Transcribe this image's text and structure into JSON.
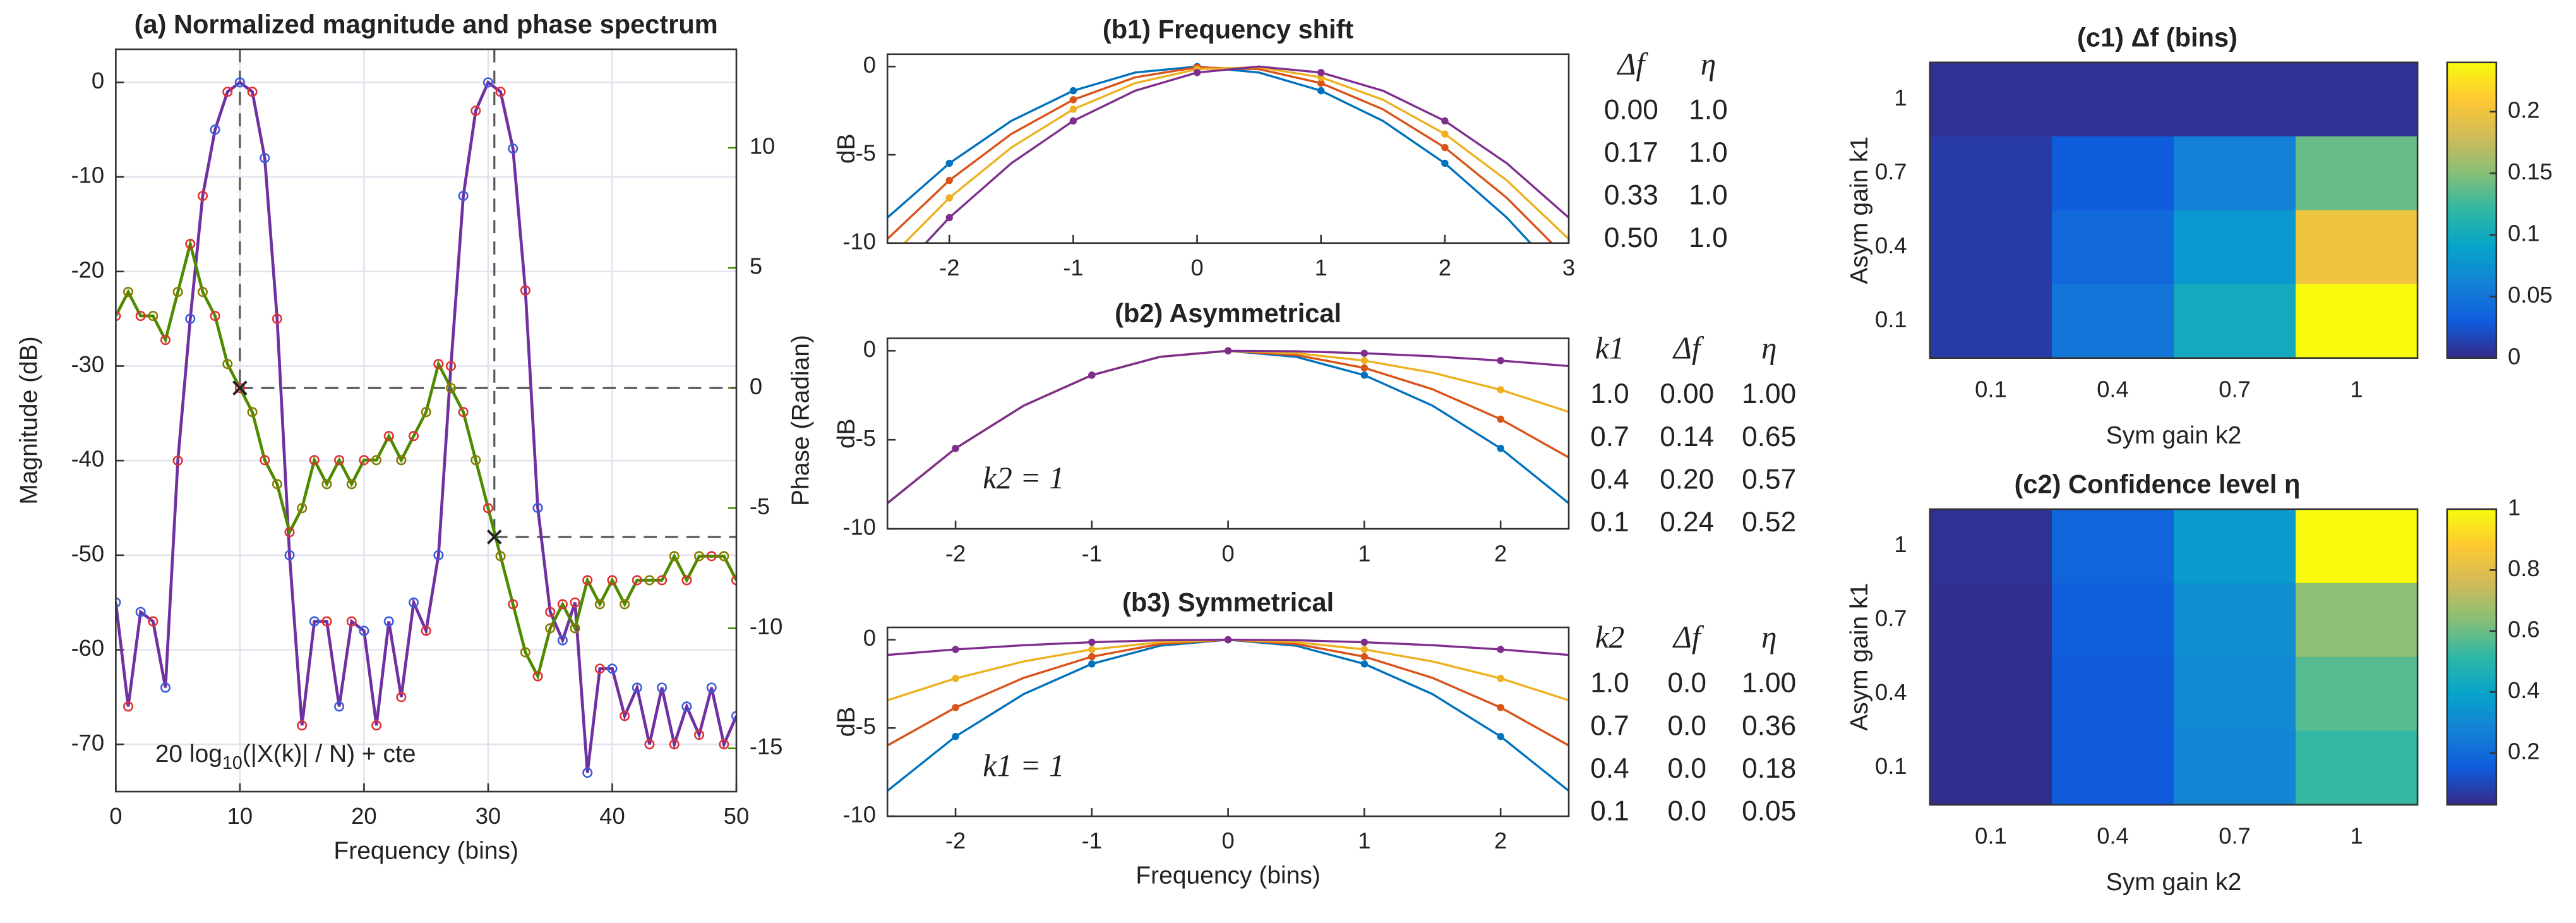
{
  "chart_data": [
    {
      "type": "line",
      "title": "(a) Normalized magnitude and phase spectrum",
      "xlabel": "Frequency (bins)",
      "ylabel": "Magnitude (dB)",
      "y2label": "Phase (Radian)",
      "annotation_parts": [
        "20 log",
        "10",
        "(|X(k)| / N) + cte"
      ],
      "x": [
        0,
        1,
        2,
        3,
        4,
        5,
        6,
        7,
        8,
        9,
        10,
        11,
        12,
        13,
        14,
        15,
        16,
        17,
        18,
        19,
        20,
        21,
        22,
        23,
        24,
        25,
        26,
        27,
        28,
        29,
        30,
        31,
        32,
        33,
        34,
        35,
        36,
        37,
        38,
        39,
        40,
        41,
        42,
        43,
        44,
        45,
        46,
        47,
        48,
        49,
        50
      ],
      "xlim": [
        0,
        50
      ],
      "xticks": [
        0,
        10,
        20,
        30,
        40,
        50
      ],
      "ylim": [
        -75,
        3.5
      ],
      "yticks": [
        -70,
        -60,
        -50,
        -40,
        -30,
        -20,
        -10,
        0
      ],
      "y2lim": [
        -16.8,
        14.1
      ],
      "y2ticks": [
        -15,
        -10,
        -5,
        0,
        5,
        10
      ],
      "grid": true,
      "series": [
        {
          "color": "#7030a0",
          "marker_colors": [
            "#3b5bdb",
            "#e03131"
          ],
          "values": [
            -55,
            -66,
            -56,
            -57,
            -64,
            -40,
            -25,
            -12,
            -5,
            -1,
            0,
            -1,
            -8,
            -25,
            -50,
            -68,
            -57,
            -57,
            -66,
            -57,
            -58,
            -68,
            -57,
            -65,
            -55,
            -58,
            -50,
            -30,
            -12,
            -3,
            0,
            -1,
            -7,
            -22,
            -45,
            -56,
            -59,
            -55,
            -73,
            -62,
            -62,
            -67,
            -64,
            -70,
            -64,
            -70,
            -66,
            -69,
            -64,
            -70,
            -67
          ]
        },
        {
          "color": "#4d8a00",
          "marker_colors": [
            "#e03131",
            "#8a7a00"
          ],
          "axis": "y2",
          "values": [
            3,
            4,
            3,
            3,
            2,
            4,
            6,
            4,
            3,
            1,
            0,
            -1,
            -3,
            -4,
            -6,
            -5,
            -3,
            -4,
            -3,
            -4,
            -3,
            -3,
            -2,
            -3,
            -2,
            -1,
            1,
            0,
            -1,
            -3,
            -5,
            -7,
            -9,
            -11,
            -12,
            -10,
            -9,
            -10,
            -8,
            -9,
            -8,
            -9,
            -8,
            -8,
            -8,
            -7,
            -8,
            -7,
            -7,
            -7,
            -8
          ]
        }
      ],
      "reference": {
        "x": [
          10,
          30.5
        ],
        "y2": [
          0,
          -6.2
        ]
      }
    },
    {
      "type": "line",
      "title": "(b1) Frequency shift",
      "ylabel": "dB",
      "x": [
        -2.5,
        -2,
        -1.5,
        -1,
        -0.5,
        0,
        0.5,
        1,
        1.5,
        2,
        2.5,
        3
      ],
      "xlim": [
        -2.5,
        3
      ],
      "xticks": [
        -2,
        -1,
        0,
        1,
        2,
        3
      ],
      "ylim": [
        -10,
        0.7
      ],
      "yticks": [
        -10,
        -5,
        0
      ],
      "marker_x": [
        -2,
        -1,
        0,
        1,
        2
      ],
      "series": [
        {
          "color": "#0072bd",
          "values": [
            -8.56,
            -5.48,
            -3.08,
            -1.37,
            -0.34,
            0,
            -0.34,
            -1.37,
            -3.08,
            -5.48,
            -8.56,
            -12.33
          ],
          "marker_values": [
            -5.48,
            -1.37,
            0,
            -1.37,
            -5.48
          ]
        },
        {
          "color": "#d95319",
          "values": [
            -9.77,
            -6.45,
            -3.82,
            -1.88,
            -0.61,
            -0.04,
            -0.15,
            -0.94,
            -2.42,
            -4.59,
            -7.44,
            -10.97
          ],
          "marker_values": [
            -6.45,
            -1.88,
            -0.04,
            -0.94,
            -4.59
          ]
        },
        {
          "color": "#edb120",
          "values": [
            -10.97,
            -7.44,
            -4.59,
            -2.42,
            -0.94,
            -0.15,
            -0.04,
            -0.61,
            -1.88,
            -3.82,
            -6.45,
            -9.77
          ],
          "marker_values": [
            -7.44,
            -2.42,
            -0.15,
            -0.61,
            -3.82
          ]
        },
        {
          "color": "#7e2f8e",
          "values": [
            -12.33,
            -8.56,
            -5.48,
            -3.08,
            -1.37,
            -0.34,
            0,
            -0.34,
            -1.37,
            -3.08,
            -5.48,
            -8.56
          ],
          "marker_values": [
            -8.56,
            -3.08,
            -0.34,
            -0.34,
            -3.08
          ]
        }
      ],
      "table": {
        "header": [
          "Δf",
          "η"
        ],
        "rows": [
          [
            "0.00",
            "1.0"
          ],
          [
            "0.17",
            "1.0"
          ],
          [
            "0.33",
            "1.0"
          ],
          [
            "0.50",
            "1.0"
          ]
        ],
        "colors": [
          "#0072bd",
          "#c00000",
          "#f0b000",
          "#7e2f8e"
        ]
      }
    },
    {
      "type": "line",
      "title": "(b2) Asymmetrical",
      "ylabel": "dB",
      "annotation": "k2 = 1",
      "x": [
        -2.5,
        -2,
        -1.5,
        -1,
        -0.5,
        0,
        0.5,
        1,
        1.5,
        2,
        2.5
      ],
      "xlim": [
        -2.5,
        2.5
      ],
      "xticks": [
        -2,
        -1,
        0,
        1,
        2
      ],
      "ylim": [
        -10,
        0.7
      ],
      "yticks": [
        -10,
        -5,
        0
      ],
      "marker_x": [
        -2,
        -1,
        0,
        1,
        2
      ],
      "series": [
        {
          "color": "#0072bd",
          "values": [
            -8.56,
            -5.48,
            -3.08,
            -1.37,
            -0.34,
            0,
            -0.34,
            -1.37,
            -3.08,
            -5.48,
            -8.56
          ],
          "marker_values": [
            -5.48,
            -1.37,
            0,
            -1.37,
            -5.48
          ]
        },
        {
          "color": "#d95319",
          "values": [
            -8.56,
            -5.48,
            -3.08,
            -1.37,
            -0.34,
            0,
            -0.24,
            -0.96,
            -2.16,
            -3.84,
            -5.99
          ],
          "marker_values": [
            -5.48,
            -1.37,
            0,
            -0.96,
            -3.84
          ]
        },
        {
          "color": "#edb120",
          "values": [
            -8.56,
            -5.48,
            -3.08,
            -1.37,
            -0.34,
            0,
            -0.14,
            -0.55,
            -1.23,
            -2.19,
            -3.43
          ],
          "marker_values": [
            -5.48,
            -1.37,
            0,
            -0.55,
            -2.19
          ]
        },
        {
          "color": "#7e2f8e",
          "values": [
            -8.56,
            -5.48,
            -3.08,
            -1.37,
            -0.34,
            0,
            -0.03,
            -0.14,
            -0.31,
            -0.55,
            -0.86
          ],
          "marker_values": [
            -5.48,
            -1.37,
            0,
            -0.14,
            -0.55
          ]
        }
      ],
      "table": {
        "header": [
          "k1",
          "Δf",
          "η"
        ],
        "rows": [
          [
            "1.0",
            "0.00",
            "1.00"
          ],
          [
            "0.7",
            "0.14",
            "0.65"
          ],
          [
            "0.4",
            "0.20",
            "0.57"
          ],
          [
            "0.1",
            "0.24",
            "0.52"
          ]
        ],
        "colors": [
          "#0072bd",
          "#c00000",
          "#f0b000",
          "#7e2f8e"
        ]
      }
    },
    {
      "type": "line",
      "title": "(b3) Symmetrical",
      "ylabel": "dB",
      "xlabel": "Frequency (bins)",
      "annotation": "k1 = 1",
      "x": [
        -2.5,
        -2,
        -1.5,
        -1,
        -0.5,
        0,
        0.5,
        1,
        1.5,
        2,
        2.5
      ],
      "xlim": [
        -2.5,
        2.5
      ],
      "xticks": [
        -2,
        -1,
        0,
        1,
        2
      ],
      "ylim": [
        -10,
        0.7
      ],
      "yticks": [
        -10,
        -5,
        0
      ],
      "marker_x": [
        -2,
        -1,
        0,
        1,
        2
      ],
      "series": [
        {
          "color": "#0072bd",
          "values": [
            -8.56,
            -5.48,
            -3.08,
            -1.37,
            -0.34,
            0,
            -0.34,
            -1.37,
            -3.08,
            -5.48,
            -8.56
          ],
          "marker_values": [
            -5.48,
            -1.37,
            0,
            -1.37,
            -5.48
          ]
        },
        {
          "color": "#d95319",
          "values": [
            -5.99,
            -3.84,
            -2.16,
            -0.96,
            -0.24,
            0,
            -0.24,
            -0.96,
            -2.16,
            -3.84,
            -5.99
          ],
          "marker_values": [
            -3.84,
            -0.96,
            0,
            -0.96,
            -3.84
          ]
        },
        {
          "color": "#edb120",
          "values": [
            -3.43,
            -2.19,
            -1.23,
            -0.55,
            -0.14,
            0,
            -0.14,
            -0.55,
            -1.23,
            -2.19,
            -3.43
          ],
          "marker_values": [
            -2.19,
            -0.55,
            0,
            -0.55,
            -2.19
          ]
        },
        {
          "color": "#7e2f8e",
          "values": [
            -0.86,
            -0.55,
            -0.31,
            -0.14,
            -0.03,
            0,
            -0.03,
            -0.14,
            -0.31,
            -0.55,
            -0.86
          ],
          "marker_values": [
            -0.55,
            -0.14,
            0,
            -0.14,
            -0.55
          ]
        }
      ],
      "table": {
        "header": [
          "k2",
          "Δf",
          "η"
        ],
        "rows": [
          [
            "1.0",
            "0.0",
            "1.00"
          ],
          [
            "0.7",
            "0.0",
            "0.36"
          ],
          [
            "0.4",
            "0.0",
            "0.18"
          ],
          [
            "0.1",
            "0.0",
            "0.05"
          ]
        ],
        "colors": [
          "#0072bd",
          "#c00000",
          "#f0b000",
          "#7e2f8e"
        ]
      }
    },
    {
      "type": "heatmap",
      "title": "(c1) Δf (bins)",
      "xlabel": "Sym gain k2",
      "ylabel": "Asym gain k1",
      "categories": [
        "0.1",
        "0.4",
        "0.7",
        "1"
      ],
      "y_categories": [
        "1",
        "0.7",
        "0.4",
        "0.1"
      ],
      "values": [
        [
          0.005,
          0.005,
          0.005,
          0.005
        ],
        [
          0.01,
          0.03,
          0.06,
          0.14
        ],
        [
          0.01,
          0.04,
          0.08,
          0.2
        ],
        [
          0.01,
          0.05,
          0.1,
          0.24
        ]
      ],
      "clim": [
        0,
        0.24
      ],
      "cticks": [
        0,
        0.05,
        0.1,
        0.15,
        0.2
      ],
      "colormap": [
        "#352a87",
        "#0f5cdd",
        "#1481d6",
        "#06a4ca",
        "#2eb7a4",
        "#87bf77",
        "#d1bb59",
        "#fec832",
        "#f9fb0e"
      ]
    },
    {
      "type": "heatmap",
      "title": "(c2) Confidence level η",
      "xlabel": "Sym gain k2",
      "ylabel": "Asym gain k1",
      "categories": [
        "0.1",
        "0.4",
        "0.7",
        "1"
      ],
      "y_categories": [
        "1",
        "0.7",
        "0.4",
        "0.1"
      ],
      "values": [
        [
          0.05,
          0.18,
          0.36,
          1.0
        ],
        [
          0.04,
          0.16,
          0.32,
          0.65
        ],
        [
          0.04,
          0.15,
          0.3,
          0.57
        ],
        [
          0.04,
          0.15,
          0.29,
          0.52
        ]
      ],
      "clim": [
        0.03,
        1
      ],
      "cticks": [
        0.2,
        0.4,
        0.6,
        0.8,
        1
      ],
      "colormap": [
        "#352a87",
        "#0f5cdd",
        "#1481d6",
        "#06a4ca",
        "#2eb7a4",
        "#87bf77",
        "#d1bb59",
        "#fec832",
        "#f9fb0e"
      ]
    }
  ]
}
